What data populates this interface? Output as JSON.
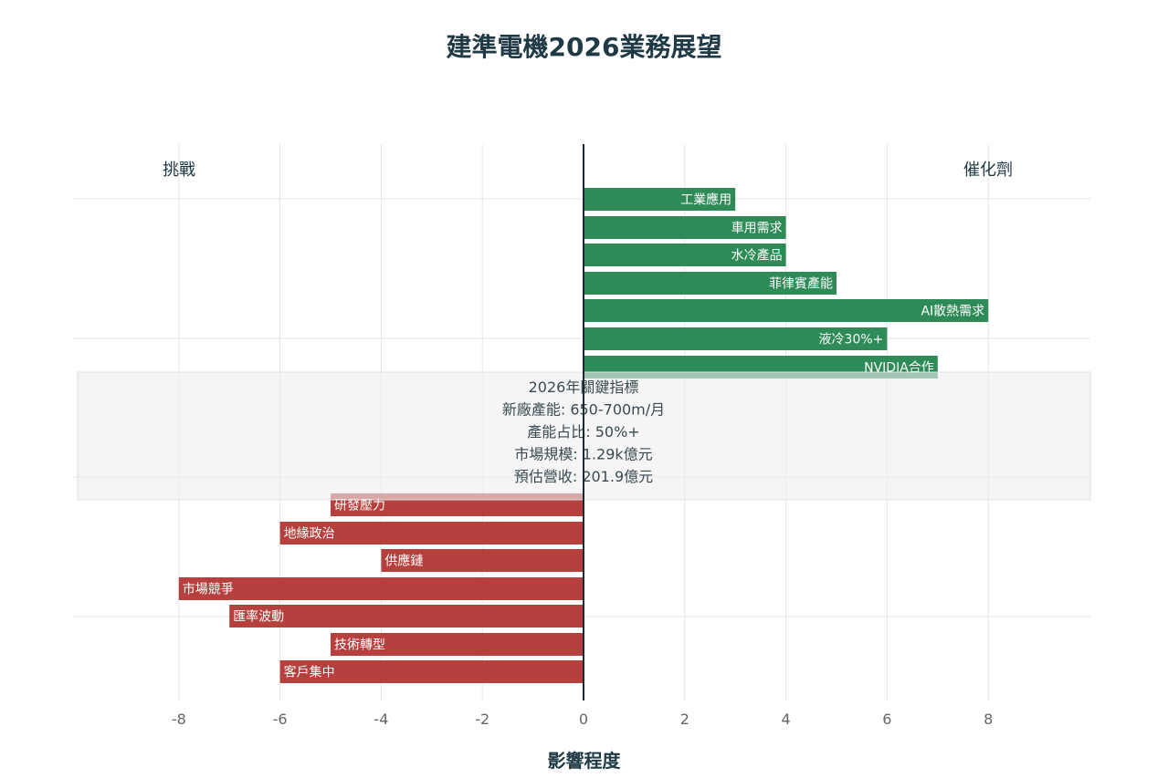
{
  "chart_data": {
    "type": "bar",
    "orientation": "horizontal",
    "title": "建準電機2026業務展望",
    "xlabel": "影響程度",
    "xlim": [
      -10,
      10
    ],
    "xticks": [
      -8,
      -6,
      -4,
      -2,
      0,
      2,
      4,
      6,
      8
    ],
    "grid": true,
    "side_labels": {
      "left": "挑戰",
      "right": "催化劑"
    },
    "series": [
      {
        "name": "催化劑",
        "color": "#2e8b57",
        "categories": [
          "工業應用",
          "車用需求",
          "水冷產品",
          "菲律賓產能",
          "AI散熱需求",
          "液冷30%+",
          "NVIDIA合作"
        ],
        "values": [
          3,
          4,
          4,
          5,
          8,
          6,
          7
        ]
      },
      {
        "name": "挑戰",
        "color": "#b5403e",
        "categories": [
          "研發壓力",
          "地緣政治",
          "供應鏈",
          "市場競爭",
          "匯率波動",
          "技術轉型",
          "客戶集中"
        ],
        "values": [
          -5,
          -6,
          -4,
          -8,
          -7,
          -5,
          -6
        ]
      }
    ],
    "annotation": {
      "lines": [
        "2026年關鍵指標",
        "新廠產能: 650-700m/月",
        "產能占比: 50%+",
        "市場規模: 1.29k億元",
        "預估營收: 201.9億元"
      ]
    }
  }
}
